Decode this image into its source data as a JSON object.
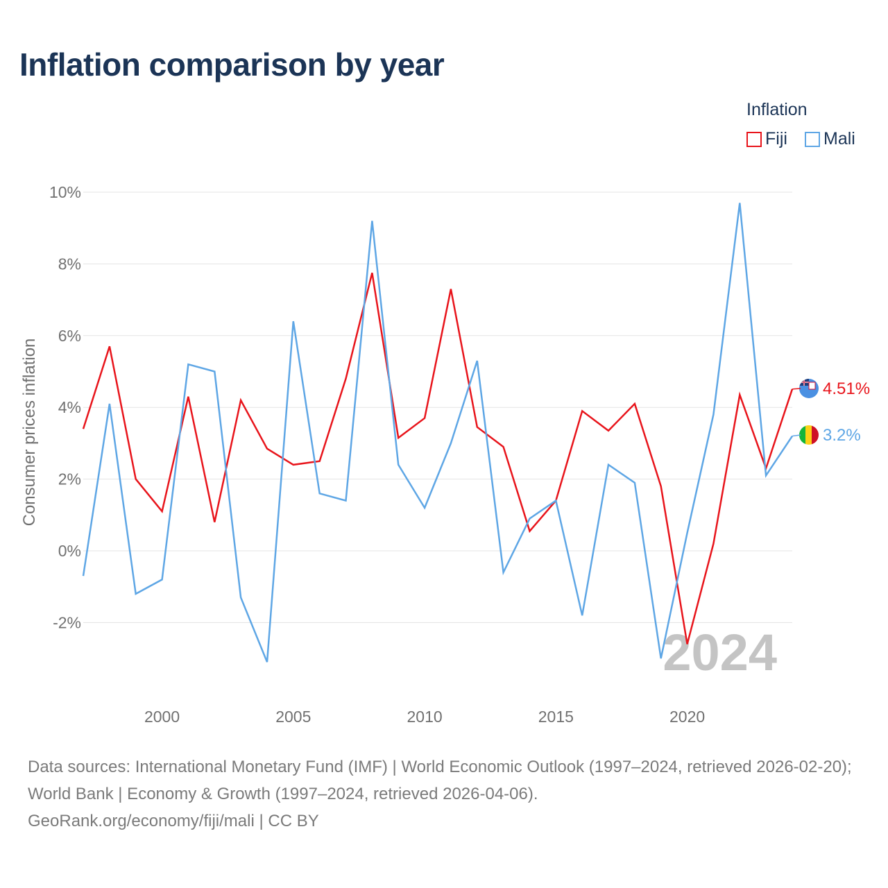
{
  "title": "Inflation comparison by year",
  "legend": {
    "title": "Inflation",
    "items": [
      {
        "label": "Fiji",
        "color": "#e8141b"
      },
      {
        "label": "Mali",
        "color": "#5ea6e5"
      }
    ]
  },
  "watermark_year": "2024",
  "footer": {
    "sources": "Data sources: International Monetary Fund (IMF) | World Economic Outlook (1997–2024, retrieved 2026-02-20); World Bank | Economy & Growth (1997–2024, retrieved 2026-04-06).",
    "credit": "GeoRank.org/economy/fiji/mali | CC BY"
  },
  "chart_data": {
    "type": "line",
    "title": "Inflation comparison by year",
    "xlabel": "",
    "ylabel": "Consumer prices inflation",
    "x": [
      1997,
      1998,
      1999,
      2000,
      2001,
      2002,
      2003,
      2004,
      2005,
      2006,
      2007,
      2008,
      2009,
      2010,
      2011,
      2012,
      2013,
      2014,
      2015,
      2016,
      2017,
      2018,
      2019,
      2020,
      2021,
      2022,
      2023,
      2024
    ],
    "xlim": [
      1997,
      2024
    ],
    "ylim": [
      -3.3,
      10
    ],
    "x_ticks": [
      {
        "value": 2000,
        "label": "2000"
      },
      {
        "value": 2005,
        "label": "2005"
      },
      {
        "value": 2010,
        "label": "2010"
      },
      {
        "value": 2015,
        "label": "2015"
      },
      {
        "value": 2020,
        "label": "2020"
      }
    ],
    "y_ticks": [
      {
        "value": -2,
        "label": "-2%"
      },
      {
        "value": 0,
        "label": "0%"
      },
      {
        "value": 2,
        "label": "2%"
      },
      {
        "value": 4,
        "label": "4%"
      },
      {
        "value": 6,
        "label": "6%"
      },
      {
        "value": 8,
        "label": "8%"
      },
      {
        "value": 10,
        "label": "10%"
      }
    ],
    "grid": true,
    "legend_position": "top-right",
    "series": [
      {
        "name": "Fiji",
        "color": "#e8141b",
        "values": [
          3.4,
          5.7,
          2.0,
          1.1,
          4.3,
          0.8,
          4.2,
          2.85,
          2.4,
          2.5,
          4.8,
          7.75,
          3.15,
          3.7,
          7.3,
          3.45,
          2.9,
          0.55,
          1.4,
          3.9,
          3.35,
          4.1,
          1.8,
          -2.6,
          0.2,
          4.35,
          2.3,
          4.51
        ],
        "end_label": "4.51%"
      },
      {
        "name": "Mali",
        "color": "#5ea6e5",
        "values": [
          -0.7,
          4.1,
          -1.2,
          -0.8,
          5.2,
          5.0,
          -1.3,
          -3.1,
          6.4,
          1.6,
          1.4,
          9.2,
          2.4,
          1.2,
          3.0,
          5.3,
          -0.6,
          0.9,
          1.4,
          -1.8,
          2.4,
          1.9,
          -3.0,
          0.5,
          3.8,
          9.7,
          2.1,
          3.2
        ],
        "end_label": "3.2%"
      }
    ]
  }
}
